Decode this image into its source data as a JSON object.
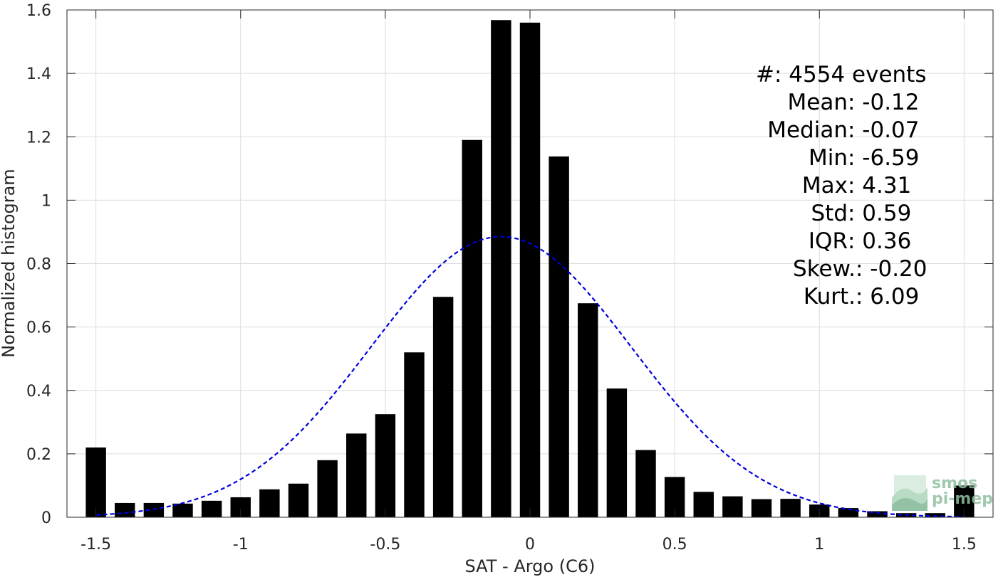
{
  "chart_data": {
    "type": "bar",
    "xlabel": "SAT - Argo (C6)",
    "ylabel": "Normalized histogram",
    "xlim": [
      -1.6,
      1.6
    ],
    "ylim": [
      0,
      1.6
    ],
    "grid": true,
    "x_ticks": [
      -1.5,
      -1,
      -0.5,
      0,
      0.5,
      1,
      1.5
    ],
    "x_tick_labels": [
      "-1.5",
      "-1",
      "-0.5",
      "0",
      "0.5",
      "1",
      "1.5"
    ],
    "y_ticks": [
      0,
      0.2,
      0.4,
      0.6,
      0.8,
      1,
      1.2,
      1.4,
      1.6
    ],
    "y_tick_labels": [
      "0",
      "0.2",
      "0.4",
      "0.6",
      "0.8",
      "1",
      "1.2",
      "1.4",
      "1.6"
    ],
    "bar_color": "#000000",
    "bar_width": 0.07,
    "bars": {
      "x": [
        -1.5,
        -1.4,
        -1.3,
        -1.2,
        -1.1,
        -1.0,
        -0.9,
        -0.8,
        -0.7,
        -0.6,
        -0.5,
        -0.4,
        -0.3,
        -0.2,
        -0.1,
        0.0,
        0.1,
        0.2,
        0.3,
        0.4,
        0.5,
        0.6,
        0.7,
        0.8,
        0.9,
        1.0,
        1.1,
        1.2,
        1.3,
        1.4,
        1.5
      ],
      "values": [
        0.22,
        0.045,
        0.045,
        0.043,
        0.052,
        0.063,
        0.088,
        0.106,
        0.18,
        0.264,
        0.325,
        0.52,
        0.695,
        1.19,
        1.568,
        1.56,
        1.138,
        0.675,
        0.406,
        0.212,
        0.127,
        0.08,
        0.066,
        0.057,
        0.058,
        0.04,
        0.029,
        0.019,
        0.013,
        0.013,
        0.1
      ]
    },
    "fit": {
      "type": "normal",
      "mean": -0.1,
      "std": 0.45,
      "peak": 0.885,
      "color": "#0000dd",
      "style": "dashed",
      "x_range": [
        -1.5,
        1.5
      ]
    },
    "stats": [
      {
        "label": "#  ",
        "value": ": 4554 events"
      },
      {
        "label": "Mean ",
        "value": ": -0.12"
      },
      {
        "label": "Median ",
        "value": ": -0.07"
      },
      {
        "label": "Min ",
        "value": ": -6.59"
      },
      {
        "label": "Max ",
        "value": ": 4.31"
      },
      {
        "label": "Std ",
        "value": ": 0.59"
      },
      {
        "label": "IQR ",
        "value": ": 0.36"
      },
      {
        "label": "Skew. ",
        "value": ": -0.20"
      },
      {
        "label": "Kurt. ",
        "value": ": 6.09"
      }
    ],
    "logo": {
      "line1": "smos",
      "line2": "pi-mep"
    }
  }
}
